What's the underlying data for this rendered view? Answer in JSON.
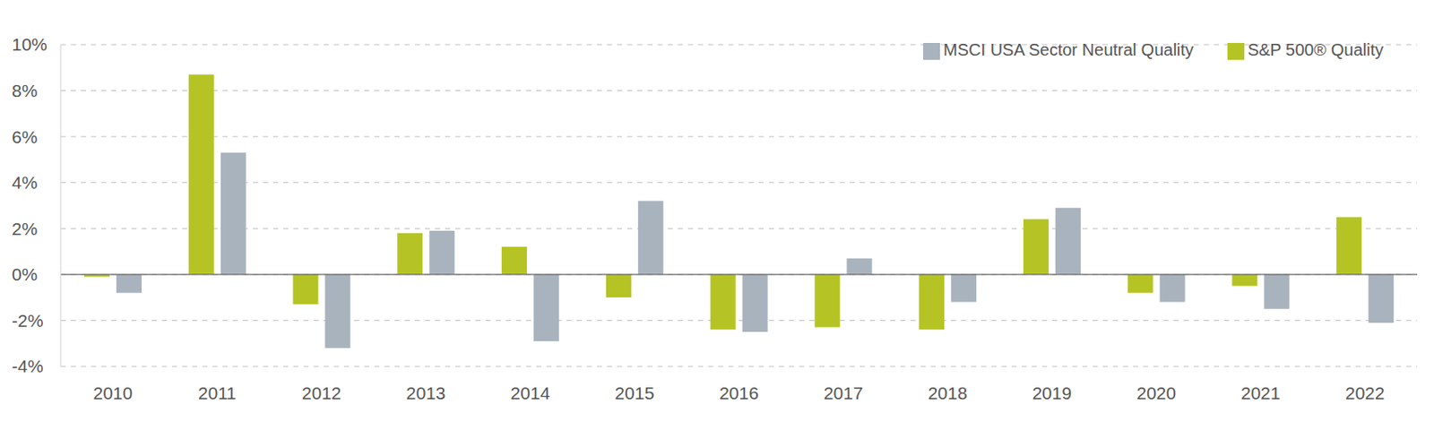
{
  "chart_data": {
    "type": "bar",
    "categories": [
      "2010",
      "2011",
      "2012",
      "2013",
      "2014",
      "2015",
      "2016",
      "2017",
      "2018",
      "2019",
      "2020",
      "2021",
      "2022"
    ],
    "series": [
      {
        "name": "S&P 500® Quality",
        "color": "#b5c424",
        "values": [
          -0.1,
          8.7,
          -1.3,
          1.8,
          1.2,
          -1.0,
          -2.4,
          -2.3,
          -2.4,
          2.4,
          -0.8,
          -0.5,
          2.5
        ]
      },
      {
        "name": "MSCI USA Sector Neutral Quality",
        "color": "#a9b3bd",
        "values": [
          -0.8,
          5.3,
          -3.2,
          1.9,
          -2.9,
          3.2,
          -2.5,
          0.7,
          -1.2,
          2.9,
          -1.2,
          -1.5,
          -2.1
        ]
      }
    ],
    "ylim": [
      -4,
      10
    ],
    "yticks": [
      {
        "value": -4,
        "label": "-4%"
      },
      {
        "value": -2,
        "label": "-2%"
      },
      {
        "value": 0,
        "label": "0%"
      },
      {
        "value": 2,
        "label": "2%"
      },
      {
        "value": 4,
        "label": "4%"
      },
      {
        "value": 6,
        "label": "6%"
      },
      {
        "value": 8,
        "label": "8%"
      },
      {
        "value": 10,
        "label": "10%"
      }
    ],
    "grid": true,
    "legend": "top-right"
  }
}
